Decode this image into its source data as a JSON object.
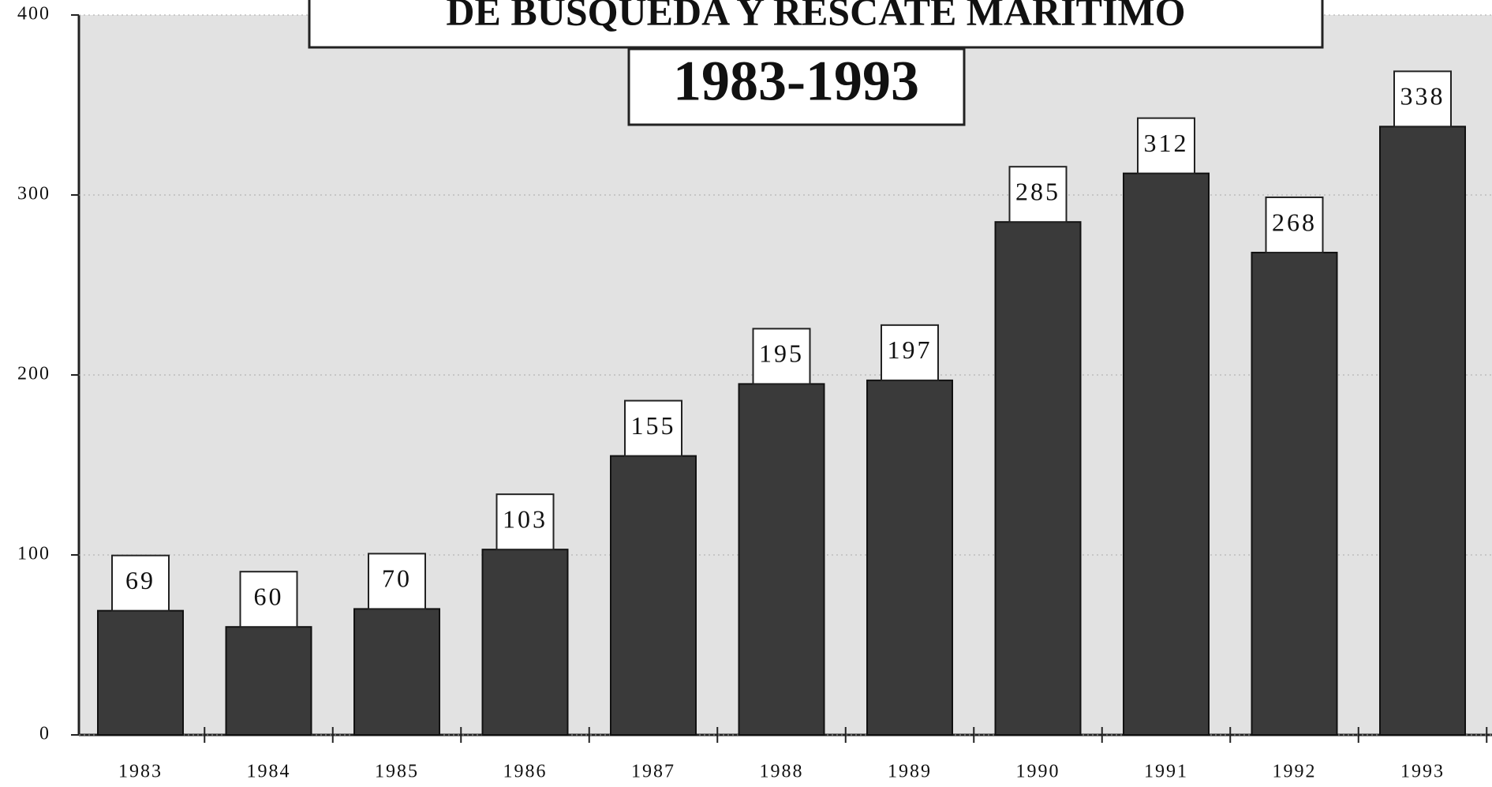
{
  "chart_data": {
    "type": "bar",
    "title": "DE BUSQUEDA Y RESCATE MARITIMO",
    "subtitle": "1983-1993",
    "categories": [
      "1983",
      "1984",
      "1985",
      "1986",
      "1987",
      "1988",
      "1989",
      "1990",
      "1991",
      "1992",
      "1993"
    ],
    "values": [
      69,
      60,
      70,
      103,
      155,
      195,
      197,
      285,
      312,
      268,
      338
    ],
    "color": "#3a3a3a",
    "ylim": [
      0,
      400
    ],
    "yticks": [
      0,
      100,
      200,
      300,
      400
    ],
    "grid": true
  }
}
